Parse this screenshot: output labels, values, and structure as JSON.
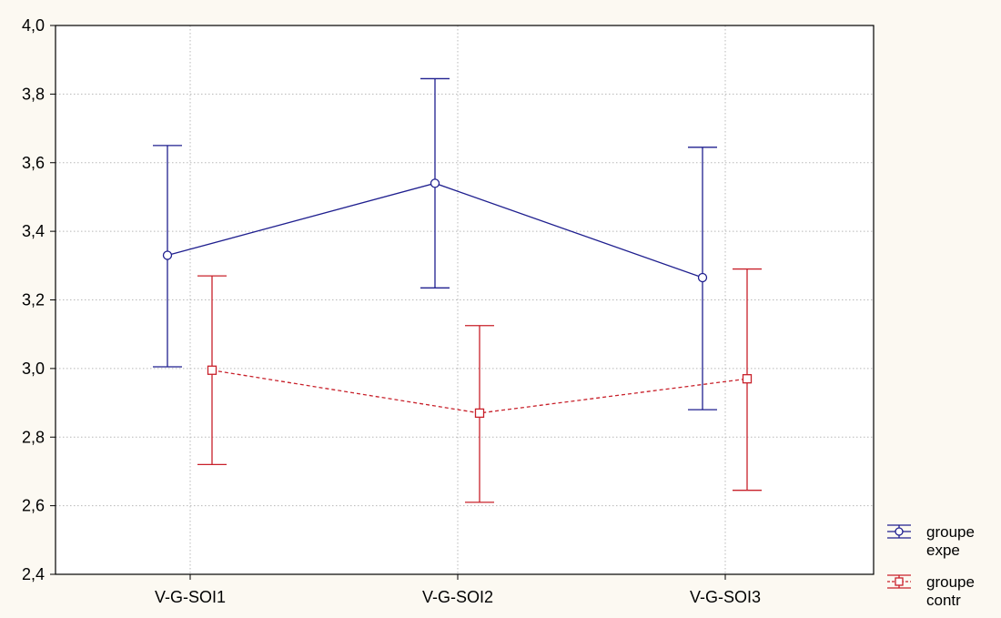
{
  "chart_data": {
    "type": "line",
    "title": "",
    "xlabel": "",
    "ylabel": "",
    "categories": [
      "V-G-SOI1",
      "V-G-SOI2",
      "V-G-SOI3"
    ],
    "ylim": [
      2.4,
      4.0
    ],
    "yticks": [
      "2,4",
      "2,6",
      "2,8",
      "3,0",
      "3,2",
      "3,4",
      "3,6",
      "3,8",
      "4,0"
    ],
    "grid": true,
    "legend_position": "bottom-right, outside plot",
    "series": [
      {
        "name_lines": [
          "groupe",
          "expe"
        ],
        "color": "#1f1f8f",
        "marker": "circle",
        "line_style": "solid",
        "values": [
          3.33,
          3.54,
          3.265
        ],
        "err_low": [
          3.005,
          3.235,
          2.88
        ],
        "err_high": [
          3.65,
          3.845,
          3.645
        ]
      },
      {
        "name_lines": [
          "groupe",
          "contr"
        ],
        "color": "#c8202a",
        "marker": "square",
        "line_style": "dashed",
        "values": [
          2.995,
          2.87,
          2.97
        ],
        "err_low": [
          2.72,
          2.61,
          2.645
        ],
        "err_high": [
          3.27,
          3.125,
          3.29
        ]
      }
    ]
  },
  "colors": {
    "background": "#fcf9f2",
    "plot_area": "#ffffff",
    "grid": "#b8b8b8"
  }
}
